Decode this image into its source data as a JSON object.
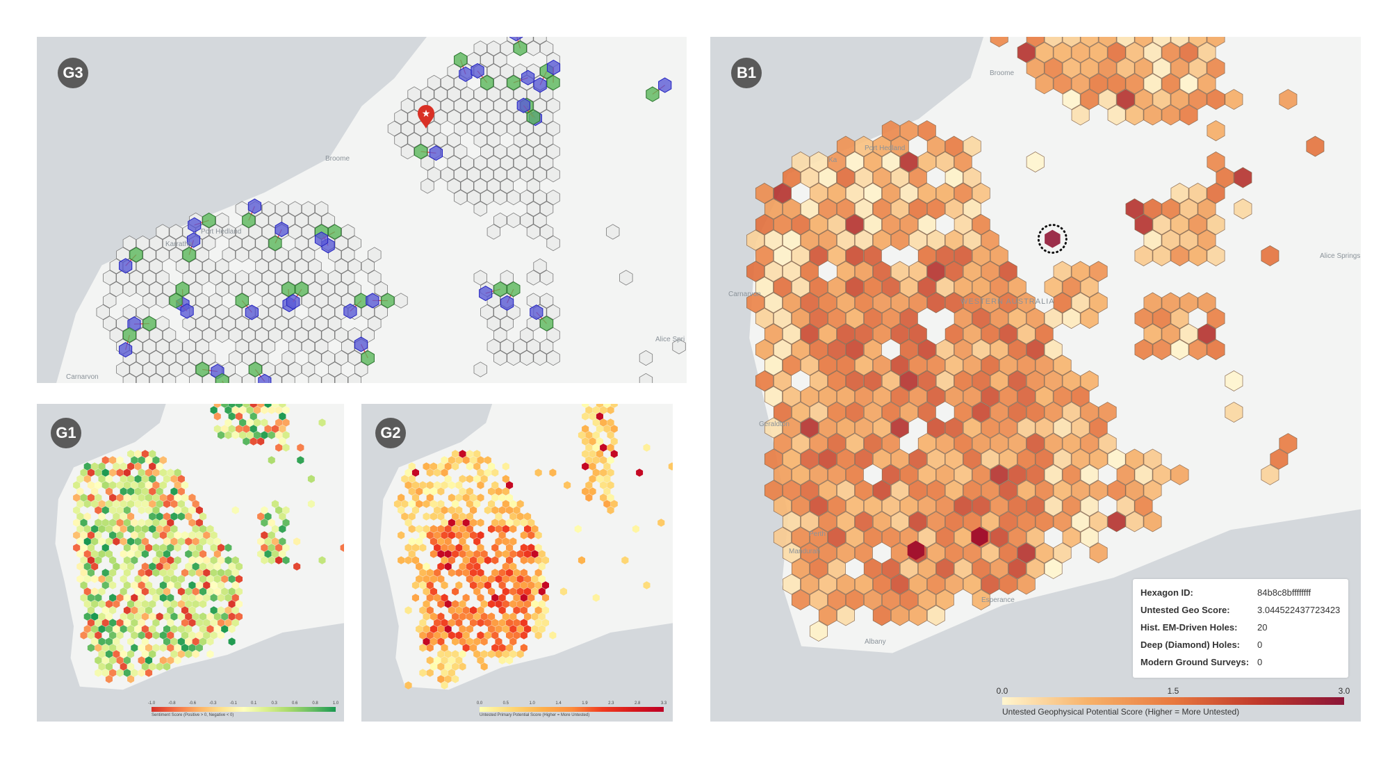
{
  "panels": {
    "g3": {
      "badge": "G3",
      "labels": [
        "Broome",
        "Port Hedland",
        "Karratha",
        "Carnarvon",
        "Alice Spri"
      ]
    },
    "g1": {
      "badge": "G1",
      "colorbar": {
        "ticks": [
          "-1.0",
          "-0.8",
          "-0.6",
          "-0.3",
          "-0.1",
          "0.1",
          "0.3",
          "0.6",
          "0.8",
          "1.0"
        ],
        "label": "Sentiment Score (Positive > 0, Negative < 0)",
        "colors": [
          "#d73027",
          "#f46d43",
          "#fdae61",
          "#fee08b",
          "#ffffbf",
          "#d9ef8b",
          "#a6d96a",
          "#66bd63",
          "#1a9850"
        ]
      }
    },
    "g2": {
      "badge": "G2",
      "colorbar": {
        "ticks": [
          "0.0",
          "0.5",
          "1.0",
          "1.4",
          "1.9",
          "2.3",
          "2.8",
          "3.3"
        ],
        "label": "Untested Primary Potential Score (Higher = More Untested)",
        "colors": [
          "#ffffb2",
          "#fed976",
          "#feb24c",
          "#fd8d3c",
          "#f03b20",
          "#d7191c",
          "#bd0026"
        ]
      }
    },
    "b1": {
      "badge": "B1",
      "labels": [
        "Broome",
        "Port Hedland",
        "Ka",
        "Carnarvon",
        "Geraldton",
        "Perth",
        "Mandurah",
        "Albany",
        "Esperance",
        "Alice Springs",
        "WESTERN AUSTRALIA"
      ],
      "colorbar": {
        "ticks": [
          "0.0",
          "1.5",
          "3.0"
        ],
        "label": "Untested Geophysical Potential Score (Higher = More Untested)",
        "colors": [
          "#fff6cf",
          "#f7b26a",
          "#e8793f",
          "#c0392b",
          "#8b1538"
        ]
      },
      "tooltip": [
        {
          "k": "Hexagon ID:",
          "v": "84b8c8bffffffff"
        },
        {
          "k": "Untested Geo Score:",
          "v": "3.044522437723423"
        },
        {
          "k": "Hist. EM-Driven Holes:",
          "v": "20"
        },
        {
          "k": "Deep (Diamond) Holes:",
          "v": "0"
        },
        {
          "k": "Modern Ground Surveys:",
          "v": "0"
        }
      ]
    }
  },
  "colors": {
    "ocean": "#d4d8dc",
    "land": "#f3f4f3",
    "green": "#5cb85c",
    "blue": "#5b5bd6",
    "link": "#e53935",
    "marker": "#d93025"
  }
}
